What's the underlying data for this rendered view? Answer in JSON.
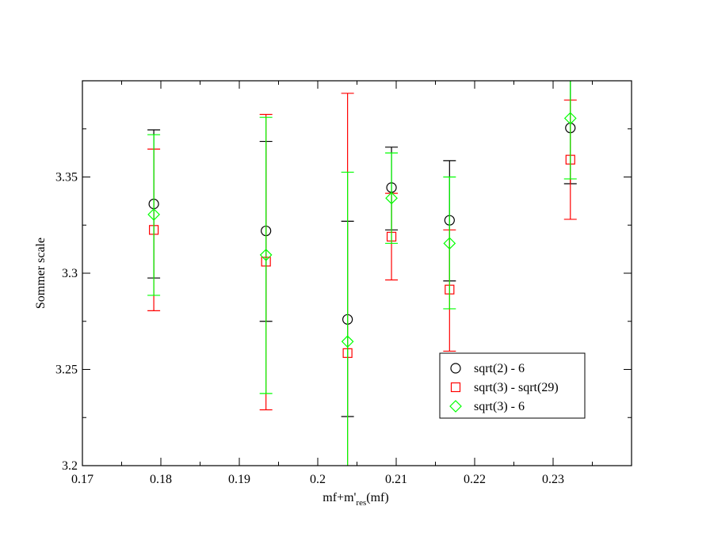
{
  "chart_data": {
    "type": "scatter",
    "xlabel": {
      "base": "mf+m'",
      "sub": "res",
      "tail": "(mf)"
    },
    "ylabel": "Sommer scale",
    "xlim": [
      0.17,
      0.24
    ],
    "ylim": [
      3.2,
      3.4
    ],
    "xticks": [
      0.17,
      0.18,
      0.19,
      0.2,
      0.21,
      0.22,
      0.23
    ],
    "xtick_labels": [
      "0.17",
      "0.18",
      "0.19",
      "0.2",
      "0.21",
      "0.22",
      "0.23"
    ],
    "yticks": [
      3.2,
      3.25,
      3.3,
      3.35
    ],
    "ytick_labels": [
      "3.2",
      "3.25",
      "3.3",
      "3.35"
    ],
    "grid": false,
    "legend_position": "lower-right",
    "series": [
      {
        "name": "sqrt(2) - 6",
        "marker": "circle",
        "color": "#000000",
        "points": [
          {
            "x": 0.1791,
            "y": 3.336,
            "lo": 3.2975,
            "hi": 3.3745
          },
          {
            "x": 0.1934,
            "y": 3.322,
            "lo": 3.275,
            "hi": 3.3685
          },
          {
            "x": 0.2038,
            "y": 3.276,
            "lo": 3.2255,
            "hi": 3.327
          },
          {
            "x": 0.2094,
            "y": 3.3445,
            "lo": 3.3225,
            "hi": 3.3655
          },
          {
            "x": 0.2168,
            "y": 3.3275,
            "lo": 3.296,
            "hi": 3.3585
          },
          {
            "x": 0.2322,
            "y": 3.3755,
            "lo": 3.3465,
            "hi": 3.4
          }
        ]
      },
      {
        "name": "sqrt(3) - sqrt(29)",
        "marker": "square",
        "color": "#ff0000",
        "points": [
          {
            "x": 0.1791,
            "y": 3.3225,
            "lo": 3.2805,
            "hi": 3.3645
          },
          {
            "x": 0.1934,
            "y": 3.306,
            "lo": 3.229,
            "hi": 3.3825
          },
          {
            "x": 0.2038,
            "y": 3.2585,
            "lo": 3.2,
            "hi": 3.3935
          },
          {
            "x": 0.2094,
            "y": 3.319,
            "lo": 3.2965,
            "hi": 3.3415
          },
          {
            "x": 0.2168,
            "y": 3.2915,
            "lo": 3.2595,
            "hi": 3.3225
          },
          {
            "x": 0.2322,
            "y": 3.359,
            "lo": 3.328,
            "hi": 3.39
          }
        ]
      },
      {
        "name": "sqrt(3) - 6",
        "marker": "diamond",
        "color": "#00ff00",
        "points": [
          {
            "x": 0.1791,
            "y": 3.3305,
            "lo": 3.2885,
            "hi": 3.372
          },
          {
            "x": 0.1934,
            "y": 3.3095,
            "lo": 3.2375,
            "hi": 3.381
          },
          {
            "x": 0.2038,
            "y": 3.2645,
            "lo": 3.2,
            "hi": 3.3525
          },
          {
            "x": 0.2094,
            "y": 3.339,
            "lo": 3.3155,
            "hi": 3.3625
          },
          {
            "x": 0.2168,
            "y": 3.3155,
            "lo": 3.2815,
            "hi": 3.35
          },
          {
            "x": 0.2322,
            "y": 3.3805,
            "lo": 3.349,
            "hi": 3.4
          }
        ]
      }
    ]
  }
}
